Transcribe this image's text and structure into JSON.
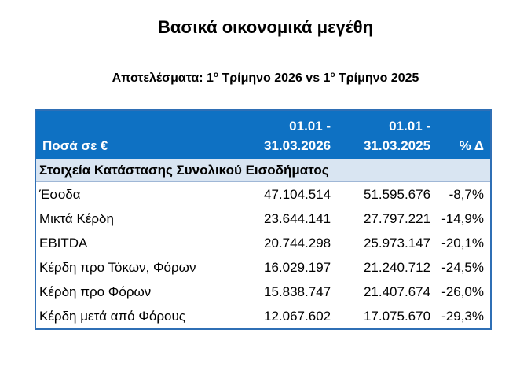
{
  "title": "Βασικά οικονομικά μεγέθη",
  "subtitle": {
    "prefix": "Αποτελέσματα: 1",
    "sup1": "ο",
    "middle": " Τρίμηνο 2026 vs 1",
    "sup2": "ο",
    "suffix": " Τρίμηνο 2025"
  },
  "table": {
    "headers": {
      "label": "Ποσά σε €",
      "col1_line1": "01.01 -",
      "col1_line2": "31.03.2026",
      "col2_line1": "01.01 -",
      "col2_line2": "31.03.2025",
      "col3": "% Δ"
    },
    "section": "Στοιχεία Κατάστασης Συνολικού Εισοδήματος",
    "rows": [
      {
        "label": "Έσοδα",
        "v2026": "47.104.514",
        "v2025": "51.595.676",
        "change": "-8,7%"
      },
      {
        "label": "Μικτά Κέρδη",
        "v2026": "23.644.141",
        "v2025": "27.797.221",
        "change": "-14,9%"
      },
      {
        "label": "EBITDA",
        "v2026": "20.744.298",
        "v2025": "25.973.147",
        "change": "-20,1%"
      },
      {
        "label": "Κέρδη προ Τόκων, Φόρων",
        "v2026": "16.029.197",
        "v2025": "21.240.712",
        "change": "-24,5%"
      },
      {
        "label": "Κέρδη προ Φόρων",
        "v2026": "15.838.747",
        "v2025": "21.407.674",
        "change": "-26,0%"
      },
      {
        "label": "Κέρδη μετά από Φόρους",
        "v2026": "12.067.602",
        "v2025": "17.075.670",
        "change": "-29,3%"
      }
    ]
  }
}
